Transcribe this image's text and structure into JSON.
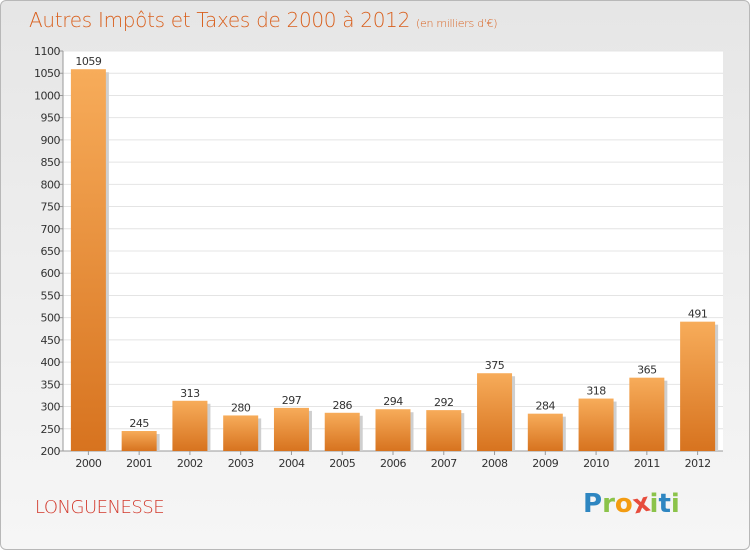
{
  "title": "Autres Impôts et Taxes de 2000 à 2012",
  "subtitle": "(en milliers d'€)",
  "town": "LONGUENESSE",
  "logo": {
    "letters": [
      "P",
      "r",
      "o",
      "x",
      "i",
      "t",
      "i"
    ],
    "colors": [
      "#2e86c1",
      "#8bc34a",
      "#f39c12",
      "#e74c3c",
      "#8bc34a",
      "#2e86c1",
      "#8bc34a"
    ]
  },
  "colors": {
    "bar_light": "#f7ac5a",
    "bar_dark": "#d7731f",
    "title": "#d9611f",
    "town": "#d2382b"
  },
  "chart_data": {
    "type": "bar",
    "title": "Autres Impôts et Taxes de 2000 à 2012",
    "subtitle": "(en milliers d'€)",
    "categories": [
      "2000",
      "2001",
      "2002",
      "2003",
      "2004",
      "2005",
      "2006",
      "2007",
      "2008",
      "2009",
      "2010",
      "2011",
      "2012"
    ],
    "values": [
      1059,
      245,
      313,
      280,
      297,
      286,
      294,
      292,
      375,
      284,
      318,
      365,
      491
    ],
    "ylim": [
      200,
      1100
    ],
    "yticks": [
      200,
      250,
      300,
      350,
      400,
      450,
      500,
      550,
      600,
      650,
      700,
      750,
      800,
      850,
      900,
      950,
      1000,
      1050,
      1100
    ],
    "grid": true
  }
}
